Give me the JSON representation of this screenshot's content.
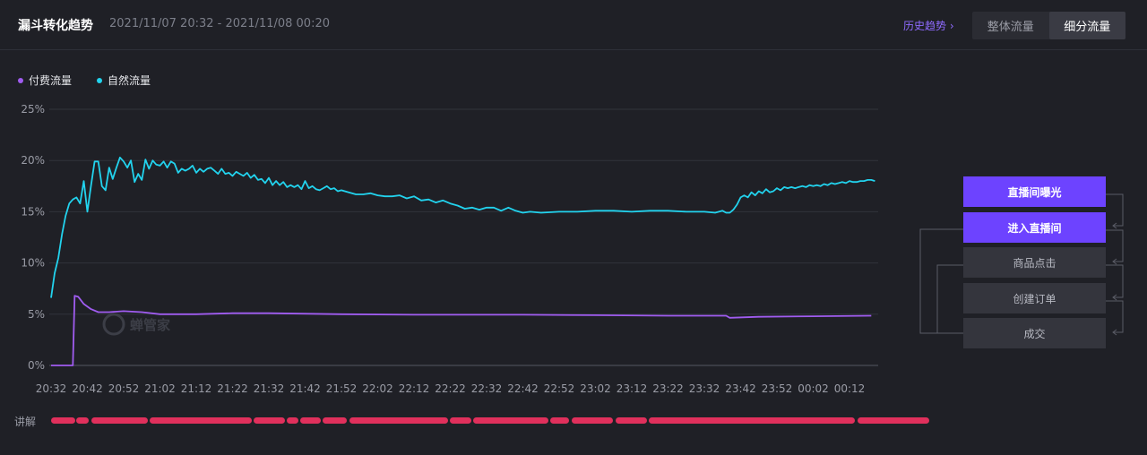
{
  "header": {
    "title": "漏斗转化趋势",
    "range": "2021/11/07 20:32 - 2021/11/08 00:20",
    "history_link": "历史趋势",
    "tabs": [
      {
        "label": "整体流量",
        "active": false
      },
      {
        "label": "细分流量",
        "active": true
      }
    ]
  },
  "colors": {
    "paid": "#a05cf0",
    "natural": "#22d3ee",
    "accent": "#6d43ff",
    "explain": "#e0305c"
  },
  "watermark": "蝉管家",
  "explain_label": "讲解",
  "funnel": [
    {
      "label": "直播间曝光",
      "active": true
    },
    {
      "label": "进入直播间",
      "active": true
    },
    {
      "label": "商品点击",
      "active": false
    },
    {
      "label": "创建订单",
      "active": false
    },
    {
      "label": "成交",
      "active": false
    }
  ],
  "chart_data": {
    "type": "line",
    "ylim": [
      0,
      25
    ],
    "y_ticks": [
      "0%",
      "5%",
      "10%",
      "15%",
      "20%",
      "25%"
    ],
    "x_ticks": [
      "20:32",
      "20:42",
      "20:52",
      "21:02",
      "21:12",
      "21:22",
      "21:32",
      "21:42",
      "21:52",
      "22:02",
      "22:12",
      "22:22",
      "22:32",
      "22:42",
      "22:52",
      "23:02",
      "23:12",
      "23:22",
      "23:32",
      "23:42",
      "23:52",
      "00:02",
      "00:12"
    ],
    "legend_position": "top-left",
    "grid": true,
    "series": [
      {
        "name": "付费流量",
        "color_key": "paid",
        "points": [
          [
            0,
            0
          ],
          [
            4,
            0
          ],
          [
            6,
            0
          ],
          [
            6.5,
            6.8
          ],
          [
            7.5,
            6.7
          ],
          [
            9,
            6
          ],
          [
            11,
            5.5
          ],
          [
            13,
            5.2
          ],
          [
            16,
            5.2
          ],
          [
            20,
            5.3
          ],
          [
            25,
            5.2
          ],
          [
            30,
            5.0
          ],
          [
            40,
            5.0
          ],
          [
            50,
            5.1
          ],
          [
            60,
            5.1
          ],
          [
            80,
            5.0
          ],
          [
            100,
            4.95
          ],
          [
            130,
            4.95
          ],
          [
            150,
            4.9
          ],
          [
            170,
            4.85
          ],
          [
            186,
            4.85
          ],
          [
            187,
            4.65
          ],
          [
            195,
            4.75
          ],
          [
            210,
            4.8
          ],
          [
            226,
            4.85
          ]
        ]
      },
      {
        "name": "自然流量",
        "color_key": "natural",
        "points": [
          [
            0,
            6.6
          ],
          [
            1,
            9
          ],
          [
            2,
            10.5
          ],
          [
            3,
            12.8
          ],
          [
            4,
            14.6
          ],
          [
            5,
            15.8
          ],
          [
            6,
            16.2
          ],
          [
            7,
            16.4
          ],
          [
            8,
            15.8
          ],
          [
            9,
            18
          ],
          [
            10,
            15
          ],
          [
            11,
            17.5
          ],
          [
            12,
            19.9
          ],
          [
            13,
            19.9
          ],
          [
            14,
            17.5
          ],
          [
            15,
            17.1
          ],
          [
            16,
            19.3
          ],
          [
            17,
            18.2
          ],
          [
            18,
            19.3
          ],
          [
            19,
            20.3
          ],
          [
            20,
            19.9
          ],
          [
            21,
            19.3
          ],
          [
            22,
            20
          ],
          [
            23,
            17.9
          ],
          [
            24,
            18.7
          ],
          [
            25,
            18.1
          ],
          [
            26,
            20.1
          ],
          [
            27,
            19.2
          ],
          [
            28,
            20
          ],
          [
            29,
            19.6
          ],
          [
            30,
            19.5
          ],
          [
            31,
            19.9
          ],
          [
            32,
            19.3
          ],
          [
            33,
            19.9
          ],
          [
            34,
            19.7
          ],
          [
            35,
            18.8
          ],
          [
            36,
            19.2
          ],
          [
            37,
            19
          ],
          [
            38,
            19.2
          ],
          [
            39,
            19.5
          ],
          [
            40,
            18.8
          ],
          [
            41,
            19.2
          ],
          [
            42,
            18.9
          ],
          [
            43,
            19.2
          ],
          [
            44,
            19.3
          ],
          [
            45,
            19
          ],
          [
            46,
            18.7
          ],
          [
            47,
            19.2
          ],
          [
            48,
            18.7
          ],
          [
            49,
            18.8
          ],
          [
            50,
            18.5
          ],
          [
            51,
            18.9
          ],
          [
            52,
            18.7
          ],
          [
            53,
            18.5
          ],
          [
            54,
            18.8
          ],
          [
            55,
            18.3
          ],
          [
            56,
            18.6
          ],
          [
            57,
            18.1
          ],
          [
            58,
            18.2
          ],
          [
            59,
            17.8
          ],
          [
            60,
            18.3
          ],
          [
            61,
            17.6
          ],
          [
            62,
            18
          ],
          [
            63,
            17.6
          ],
          [
            64,
            17.9
          ],
          [
            65,
            17.4
          ],
          [
            66,
            17.6
          ],
          [
            67,
            17.4
          ],
          [
            68,
            17.6
          ],
          [
            69,
            17.2
          ],
          [
            70,
            18
          ],
          [
            71,
            17.3
          ],
          [
            72,
            17.5
          ],
          [
            73,
            17.2
          ],
          [
            74,
            17.1
          ],
          [
            75,
            17.3
          ],
          [
            76,
            17.5
          ],
          [
            77,
            17.2
          ],
          [
            78,
            17.3
          ],
          [
            79,
            17
          ],
          [
            80,
            17.1
          ],
          [
            82,
            16.9
          ],
          [
            84,
            16.7
          ],
          [
            86,
            16.7
          ],
          [
            88,
            16.8
          ],
          [
            90,
            16.6
          ],
          [
            92,
            16.5
          ],
          [
            94,
            16.5
          ],
          [
            96,
            16.6
          ],
          [
            98,
            16.3
          ],
          [
            100,
            16.5
          ],
          [
            102,
            16.1
          ],
          [
            104,
            16.2
          ],
          [
            106,
            15.9
          ],
          [
            108,
            16.1
          ],
          [
            110,
            15.8
          ],
          [
            112,
            15.6
          ],
          [
            114,
            15.3
          ],
          [
            116,
            15.4
          ],
          [
            118,
            15.2
          ],
          [
            120,
            15.4
          ],
          [
            122,
            15.4
          ],
          [
            124,
            15.1
          ],
          [
            126,
            15.4
          ],
          [
            128,
            15.1
          ],
          [
            130,
            14.9
          ],
          [
            132,
            15
          ],
          [
            135,
            14.9
          ],
          [
            140,
            15
          ],
          [
            145,
            15
          ],
          [
            150,
            15.1
          ],
          [
            155,
            15.1
          ],
          [
            160,
            15
          ],
          [
            165,
            15.1
          ],
          [
            170,
            15.1
          ],
          [
            175,
            15
          ],
          [
            180,
            15
          ],
          [
            183,
            14.9
          ],
          [
            185,
            15.1
          ],
          [
            186,
            14.9
          ],
          [
            187,
            14.9
          ],
          [
            188,
            15.2
          ],
          [
            189,
            15.7
          ],
          [
            190,
            16.4
          ],
          [
            191,
            16.6
          ],
          [
            192,
            16.4
          ],
          [
            193,
            16.9
          ],
          [
            194,
            16.6
          ],
          [
            195,
            17
          ],
          [
            196,
            16.8
          ],
          [
            197,
            17.2
          ],
          [
            198,
            16.9
          ],
          [
            199,
            17
          ],
          [
            200,
            17.3
          ],
          [
            201,
            17.1
          ],
          [
            202,
            17.4
          ],
          [
            203,
            17.3
          ],
          [
            204,
            17.4
          ],
          [
            205,
            17.3
          ],
          [
            206,
            17.4
          ],
          [
            207,
            17.5
          ],
          [
            208,
            17.4
          ],
          [
            209,
            17.6
          ],
          [
            210,
            17.5
          ],
          [
            211,
            17.6
          ],
          [
            212,
            17.5
          ],
          [
            213,
            17.7
          ],
          [
            214,
            17.6
          ],
          [
            215,
            17.8
          ],
          [
            216,
            17.7
          ],
          [
            217,
            17.8
          ],
          [
            218,
            17.9
          ],
          [
            219,
            17.8
          ],
          [
            220,
            18
          ],
          [
            221,
            17.9
          ],
          [
            222,
            17.9
          ],
          [
            223,
            18
          ],
          [
            224,
            18
          ],
          [
            225,
            18.1
          ],
          [
            226,
            18.1
          ],
          [
            227,
            18
          ]
        ]
      }
    ],
    "explain_segments": [
      [
        0,
        27
      ],
      [
        28,
        42
      ],
      [
        45,
        108
      ],
      [
        110,
        224
      ],
      [
        226,
        261
      ],
      [
        263,
        276
      ],
      [
        278,
        301
      ],
      [
        303,
        330
      ],
      [
        333,
        443
      ],
      [
        445,
        469
      ],
      [
        471,
        555
      ],
      [
        557,
        578
      ],
      [
        581,
        627
      ],
      [
        630,
        665
      ],
      [
        667,
        897
      ],
      [
        900,
        980
      ]
    ]
  }
}
